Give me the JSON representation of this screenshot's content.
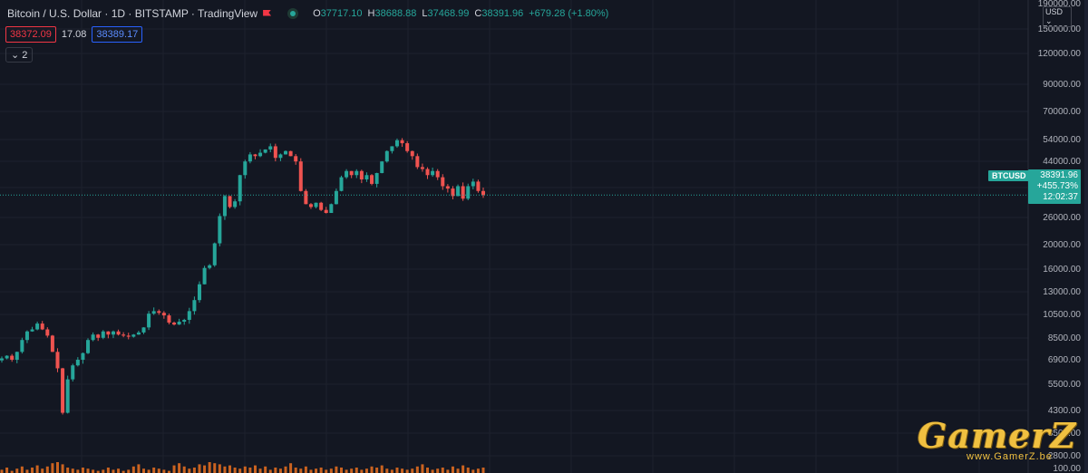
{
  "header": {
    "symbol": "Bitcoin / U.S. Dollar · 1D · BITSTAMP · TradingView",
    "ohlc": [
      {
        "k": "O",
        "v": "37717.10"
      },
      {
        "k": "H",
        "v": "38688.88"
      },
      {
        "k": "L",
        "v": "37468.99"
      },
      {
        "k": "C",
        "v": "38391.96"
      },
      {
        "k": "",
        "v": "+679.28 (+1.80%)"
      }
    ]
  },
  "quotes": {
    "bid": "38372.09",
    "spread": "17.08",
    "ask": "38389.17"
  },
  "indicators_toggle": "⌄ 2",
  "currency_label": "USD ⌄",
  "last_price": {
    "symbol": "BTCUSD",
    "price": "38391.96",
    "change": "+455.73%",
    "countdown": "12:02:37"
  },
  "watermark": {
    "logo": "GamerZ",
    "url": "www.GamerZ.be"
  },
  "colors": {
    "background": "#131722",
    "up": "#26a69a",
    "down": "#ef5350",
    "volume": "#e06c20"
  },
  "chart_data": {
    "type": "candlestick",
    "scale": "log",
    "y_ticks": [
      190000,
      150000,
      120000,
      90000,
      70000,
      54000,
      44000,
      34000,
      26000,
      20000,
      16000,
      13000,
      10500,
      8500,
      6900,
      5500,
      4300,
      3500,
      2800,
      100
    ],
    "y_tick_labels": [
      "190000.00",
      "150000.00",
      "120000.00",
      "90000.00",
      "70000.00",
      "54000.00",
      "44000.00",
      "34000.00",
      "26000.00",
      "20000.00",
      "16000.00",
      "13000.00",
      "10500.00",
      "8500.00",
      "6900.00",
      "5500.00",
      "4300.00",
      "3500.00",
      "2800.00",
      "100.00"
    ],
    "last_price": 38391.96,
    "close_series": [
      7300,
      7500,
      7200,
      7800,
      8800,
      9600,
      9800,
      10400,
      9800,
      9200,
      7800,
      6600,
      4200,
      5900,
      6800,
      7200,
      7700,
      8800,
      9300,
      9000,
      9600,
      9300,
      9600,
      9300,
      9200,
      9100,
      9300,
      9500,
      10000,
      11500,
      11800,
      11600,
      11300,
      10500,
      10300,
      10600,
      10800,
      11800,
      13200,
      15500,
      18300,
      18800,
      23500,
      31000,
      38000,
      34000,
      36000,
      47000,
      54000,
      58000,
      57000,
      59000,
      61000,
      63000,
      56000,
      58000,
      60000,
      57000,
      54000,
      40000,
      35000,
      34000,
      35500,
      33000,
      32000,
      35000,
      40000,
      46000,
      49000,
      47000,
      49000,
      45000,
      47000,
      43000,
      48000,
      54000,
      60000,
      63000,
      67000,
      65000,
      60000,
      57000,
      51000,
      50000,
      47000,
      49000,
      46000,
      42000,
      41000,
      38000,
      42000,
      37000,
      42000,
      44000,
      40000,
      38391.96
    ],
    "volume_series": [
      0.3,
      0.5,
      0.2,
      0.4,
      0.6,
      0.3,
      0.5,
      0.7,
      0.4,
      0.6,
      0.9,
      1.0,
      0.8,
      0.5,
      0.4,
      0.3,
      0.5,
      0.4,
      0.3,
      0.2,
      0.3,
      0.5,
      0.3,
      0.4,
      0.2,
      0.3,
      0.6,
      0.8,
      0.4,
      0.3,
      0.5,
      0.4,
      0.3,
      0.2,
      0.7,
      0.9,
      0.6,
      0.4,
      0.5,
      0.8,
      0.7,
      1.0,
      0.9,
      0.8,
      0.6,
      0.7,
      0.5,
      0.4,
      0.6,
      0.5,
      0.7,
      0.4,
      0.6,
      0.3,
      0.5,
      0.4,
      0.6,
      0.9,
      0.5,
      0.4,
      0.6,
      0.3,
      0.4,
      0.5,
      0.3,
      0.4,
      0.6,
      0.5,
      0.3,
      0.4,
      0.5,
      0.3,
      0.4,
      0.6,
      0.5,
      0.7,
      0.4,
      0.3,
      0.5,
      0.4,
      0.3,
      0.4,
      0.6,
      0.8,
      0.5,
      0.3,
      0.4,
      0.5,
      0.3,
      0.6,
      0.4,
      0.7,
      0.5,
      0.3,
      0.4,
      0.5
    ]
  }
}
